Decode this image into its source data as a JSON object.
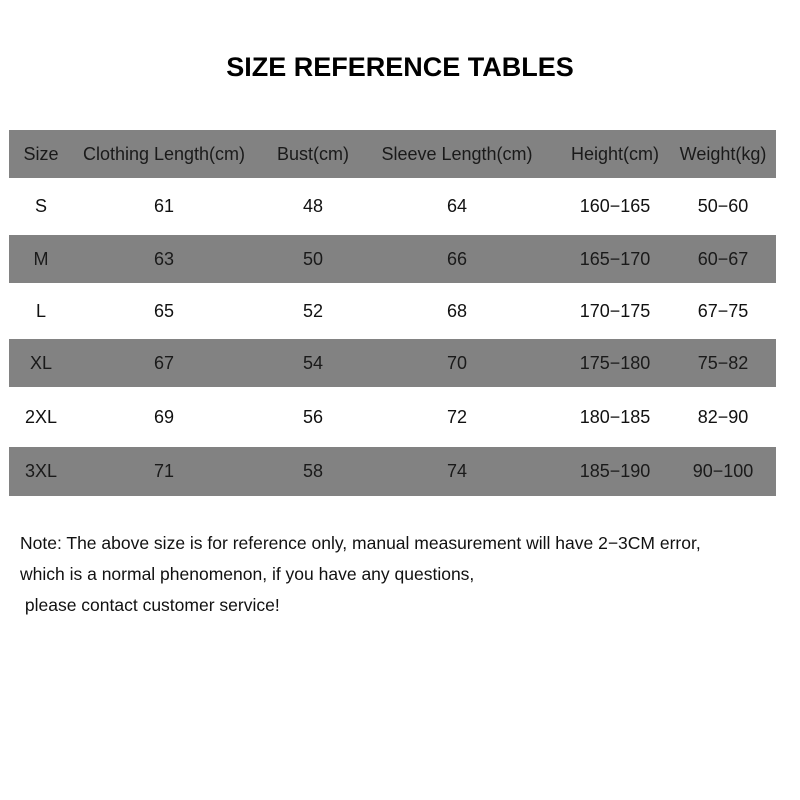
{
  "title": "SIZE REFERENCE TABLES",
  "table": {
    "headers": [
      "Size",
      "Clothing Length(cm)",
      "Bust(cm)",
      "Sleeve Length(cm)",
      "Height(cm)",
      "Weight(kg)"
    ],
    "rows": [
      [
        "S",
        "61",
        "48",
        "64",
        "160−165",
        "50−60"
      ],
      [
        "M",
        "63",
        "50",
        "66",
        "165−170",
        "60−67"
      ],
      [
        "L",
        "65",
        "52",
        "68",
        "170−175",
        "67−75"
      ],
      [
        "XL",
        "67",
        "54",
        "70",
        "175−180",
        "75−82"
      ],
      [
        "2XL",
        "69",
        "56",
        "72",
        "180−185",
        "82−90"
      ],
      [
        "3XL",
        "71",
        "58",
        "74",
        "185−190",
        "90−100"
      ]
    ],
    "header_color": "#828282",
    "stripe_color": "#828282"
  },
  "note": [
    "Note: The above size is for reference only, manual measurement will have 2−3CM error,",
    "which is a normal phenomenon, if you have any questions,",
    " please contact customer service!"
  ]
}
